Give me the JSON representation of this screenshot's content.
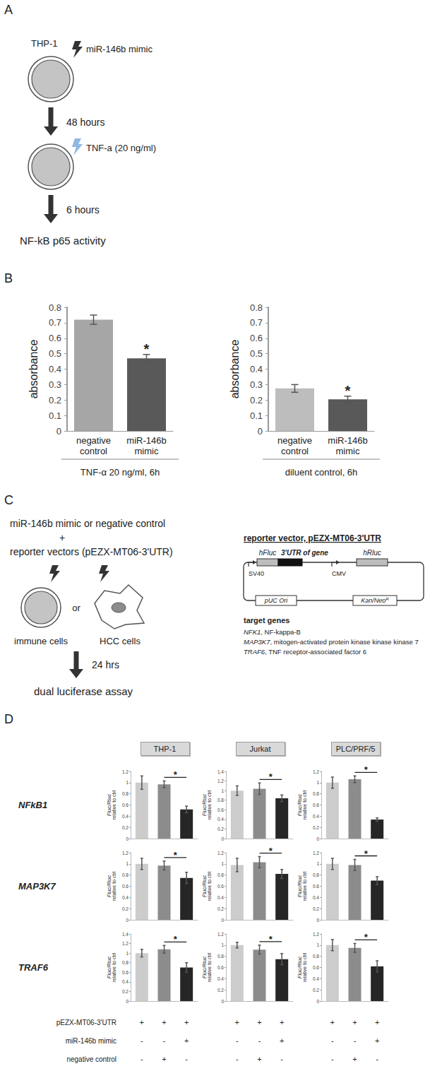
{
  "panel_labels": [
    "A",
    "B",
    "C",
    "D"
  ],
  "panel_a": {
    "cell": "THP-1",
    "treatment_1": "miR-146b mimic",
    "interval_1": "48 hours",
    "treatment_2": "TNF-a (20 ng/ml)",
    "interval_2": "6 hours",
    "readout": "NF-kB p65 activity"
  },
  "panel_c": {
    "transfection": [
      "miR-146b mimic or negative control",
      "+",
      "reporter vectors (pEZX-MT06-3'UTR)"
    ],
    "cells": [
      "immune cells",
      "or",
      "HCC cells"
    ],
    "interval": "24 hrs",
    "readout": "dual luciferase assay",
    "vector": {
      "title": "reporter vector, pEZX-MT06-3'UTR",
      "promoter_1": "SV40",
      "reporter_1": "hFluc",
      "insert": "3'UTR of gene",
      "promoter_2": "CMV",
      "reporter_2": "hRluc",
      "origin": "pUC Ori",
      "resistance": {
        "text": "Kan/Neo",
        "superscript": "R"
      }
    },
    "target_genes": {
      "title": "target genes",
      "items": [
        "NFK1, NF-kappa-B",
        "MAP3K7, mitogen-activated protein kinase kinase kinase 7",
        "TRAF6, TNF receptor-associated factor 6"
      ]
    }
  },
  "panel_d": {
    "columns": [
      "THP-1",
      "Jurkat",
      "PLC/PRF/5"
    ],
    "rows": [
      "NFkB1",
      "MAP3K7",
      "TRAF6"
    ],
    "conditions": [
      {
        "label": "pEZX-MT06-3'UTR",
        "marks": [
          "+",
          "+",
          "+"
        ]
      },
      {
        "label": "miR-146b mimic",
        "marks": [
          "-",
          "-",
          "+"
        ]
      },
      {
        "label": "negative control",
        "marks": [
          "-",
          "+",
          "-"
        ]
      }
    ]
  },
  "chart_data": [
    {
      "type": "bar",
      "categories": [
        "negative\ncontrol",
        "miR-146b\nmimic"
      ],
      "values": [
        0.72,
        0.47
      ],
      "errors": [
        0.03,
        0.025
      ],
      "colors": [
        "#a6a6a6",
        "#595959"
      ],
      "xlabel": "TNF-α 20 ng/ml, 6h",
      "ylabel": "absorbance",
      "ylim": [
        0,
        0.8
      ],
      "yticks": [
        0,
        0.1,
        0.2,
        0.3,
        0.4,
        0.5,
        0.6,
        0.7,
        0.8
      ],
      "grid": false,
      "annotations": [
        {
          "text": "*",
          "at": 1
        }
      ]
    },
    {
      "type": "bar",
      "categories": [
        "negative\ncontrol",
        "miR-146b\nmimic"
      ],
      "values": [
        0.275,
        0.205
      ],
      "errors": [
        0.025,
        0.02
      ],
      "colors": [
        "#bdbdbd",
        "#595959"
      ],
      "xlabel": "diluent control, 6h",
      "ylabel": "absorbance",
      "ylim": [
        0,
        0.8
      ],
      "yticks": [
        0,
        0.1,
        0.2,
        0.3,
        0.4,
        0.5,
        0.6,
        0.7,
        0.8
      ],
      "grid": false,
      "annotations": [
        {
          "text": "*",
          "at": 1
        }
      ]
    },
    {
      "type": "bar",
      "categories": [
        null,
        null,
        null
      ],
      "values": [
        1.0,
        0.97,
        0.52
      ],
      "errors": [
        0.12,
        0.06,
        0.06
      ],
      "colors": [
        "#cccccc",
        "#8c8c8c",
        "#262626"
      ],
      "ylabel": "Fluc/Rluc\nrelative to ctrl",
      "ylim": [
        0,
        1.2
      ],
      "yticks": [
        0,
        0.2,
        0.4,
        0.6,
        0.8,
        1,
        1.2
      ],
      "grid": false,
      "tick_labels": "y",
      "annotations": [
        {
          "text": "*",
          "from": 1,
          "to": 2
        }
      ]
    },
    {
      "type": "bar",
      "categories": [
        null,
        null,
        null
      ],
      "values": [
        1.0,
        1.04,
        0.84
      ],
      "errors": [
        0.1,
        0.12,
        0.07
      ],
      "colors": [
        "#cccccc",
        "#8c8c8c",
        "#262626"
      ],
      "ylabel": "Fluc/Rluc\nrelative to ctrl",
      "ylim": [
        0,
        1.4
      ],
      "yticks": [
        0,
        0.2,
        0.4,
        0.6,
        0.8,
        1,
        1.2,
        1.4
      ],
      "grid": false,
      "tick_labels": "y",
      "annotations": [
        {
          "text": "*",
          "from": 1,
          "to": 2
        }
      ]
    },
    {
      "type": "bar",
      "categories": [
        null,
        null,
        null
      ],
      "values": [
        1.0,
        1.06,
        0.34
      ],
      "errors": [
        0.1,
        0.06,
        0.03
      ],
      "colors": [
        "#cccccc",
        "#8c8c8c",
        "#262626"
      ],
      "ylabel": "Fluc/Rluc\nrelative to ctrl",
      "ylim": [
        0,
        1.2
      ],
      "yticks": [
        0,
        0.2,
        0.4,
        0.6,
        0.8,
        1,
        1.2
      ],
      "grid": false,
      "tick_labels": "y",
      "annotations": [
        {
          "text": "*",
          "from": 1,
          "to": 2
        }
      ]
    },
    {
      "type": "bar",
      "categories": [
        null,
        null,
        null
      ],
      "values": [
        1.0,
        0.97,
        0.75
      ],
      "errors": [
        0.1,
        0.08,
        0.1
      ],
      "colors": [
        "#cccccc",
        "#8c8c8c",
        "#262626"
      ],
      "ylabel": "Fluc/Rluc\nrelative to ctrl",
      "ylim": [
        0,
        1.2
      ],
      "yticks": [
        0,
        0.2,
        0.4,
        0.6,
        0.8,
        1,
        1.2
      ],
      "grid": false,
      "tick_labels": "y",
      "annotations": [
        {
          "text": "*",
          "from": 1,
          "to": 2
        }
      ]
    },
    {
      "type": "bar",
      "categories": [
        null,
        null,
        null
      ],
      "values": [
        0.98,
        1.03,
        0.82
      ],
      "errors": [
        0.12,
        0.1,
        0.08
      ],
      "colors": [
        "#cccccc",
        "#8c8c8c",
        "#262626"
      ],
      "ylabel": "Fluc/Rluc\nrelative to ctrl",
      "ylim": [
        0,
        1.2
      ],
      "yticks": [
        0,
        0.2,
        0.4,
        0.6,
        0.8,
        1,
        1.2
      ],
      "grid": false,
      "tick_labels": "y",
      "annotations": [
        {
          "text": "*",
          "from": 1,
          "to": 2
        }
      ]
    },
    {
      "type": "bar",
      "categories": [
        null,
        null,
        null
      ],
      "values": [
        1.0,
        0.98,
        0.7
      ],
      "errors": [
        0.1,
        0.1,
        0.07
      ],
      "colors": [
        "#cccccc",
        "#8c8c8c",
        "#262626"
      ],
      "ylabel": "Fluc/Rluc\nrelative to ctrl",
      "ylim": [
        0,
        1.2
      ],
      "yticks": [
        0,
        0.2,
        0.4,
        0.6,
        0.8,
        1,
        1.2
      ],
      "grid": false,
      "tick_labels": "y",
      "annotations": [
        {
          "text": "*",
          "from": 1,
          "to": 2
        }
      ]
    },
    {
      "type": "bar",
      "categories": [
        null,
        null,
        null
      ],
      "values": [
        1.0,
        1.08,
        0.7
      ],
      "errors": [
        0.08,
        0.08,
        0.1
      ],
      "colors": [
        "#cccccc",
        "#8c8c8c",
        "#262626"
      ],
      "ylabel": "Fluc/Rluc\nrelative to ctrl",
      "ylim": [
        0,
        1.4
      ],
      "yticks": [
        0,
        0.2,
        0.4,
        0.6,
        0.8,
        1,
        1.2,
        1.4
      ],
      "grid": false,
      "tick_labels": "y",
      "annotations": [
        {
          "text": "*",
          "from": 1,
          "to": 2
        }
      ]
    },
    {
      "type": "bar",
      "categories": [
        null,
        null,
        null
      ],
      "values": [
        1.0,
        0.92,
        0.75
      ],
      "errors": [
        0.05,
        0.08,
        0.1
      ],
      "colors": [
        "#cccccc",
        "#8c8c8c",
        "#262626"
      ],
      "ylabel": "Fluc/Rluc\nrelative to ctrl",
      "ylim": [
        0,
        1.2
      ],
      "yticks": [
        0,
        0.2,
        0.4,
        0.6,
        0.8,
        1,
        1.2
      ],
      "grid": false,
      "tick_labels": "y",
      "annotations": [
        {
          "text": "*",
          "from": 1,
          "to": 2
        }
      ]
    },
    {
      "type": "bar",
      "categories": [
        null,
        null,
        null
      ],
      "values": [
        1.0,
        0.95,
        0.62
      ],
      "errors": [
        0.1,
        0.08,
        0.1
      ],
      "colors": [
        "#cccccc",
        "#8c8c8c",
        "#262626"
      ],
      "ylabel": "Fluc/Rluc\nrelative to ctrl",
      "ylim": [
        0,
        1.2
      ],
      "yticks": [
        0,
        0.2,
        0.4,
        0.6,
        0.8,
        1,
        1.2
      ],
      "grid": false,
      "tick_labels": "y",
      "annotations": [
        {
          "text": "*",
          "from": 1,
          "to": 2
        }
      ]
    }
  ]
}
